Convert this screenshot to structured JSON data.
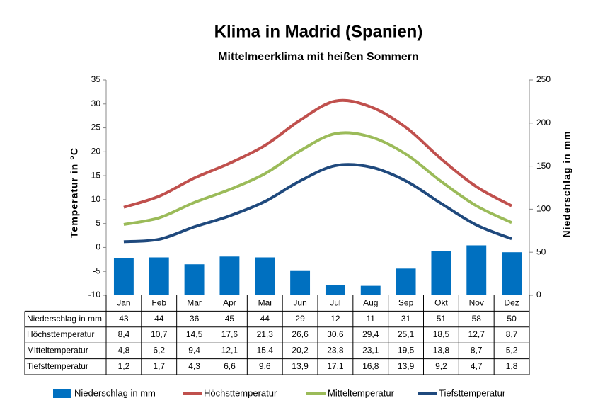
{
  "chart_data": {
    "type": "combo",
    "title": "Klima in Madrid (Spanien)",
    "subtitle": "Mittelmeerklima mit heißen Sommern",
    "y_label": "Temperatur in °C",
    "y2_label": "Niederschlag in mm",
    "categories": [
      "Jan",
      "Feb",
      "Mar",
      "Apr",
      "Mai",
      "Jun",
      "Jul",
      "Aug",
      "Sep",
      "Okt",
      "Nov",
      "Dez"
    ],
    "ylim": [
      -10,
      35
    ],
    "yticks": [
      -10,
      -5,
      0,
      5,
      10,
      15,
      20,
      25,
      30,
      35
    ],
    "y2lim": [
      0,
      250
    ],
    "y2ticks": [
      0,
      50,
      100,
      150,
      200,
      250
    ],
    "grid": false,
    "legend": "bottom",
    "series": [
      {
        "name": "Niederschlag in mm",
        "type": "bar",
        "axis": "y2",
        "color": "#0070c0",
        "values": [
          43,
          44,
          36,
          45,
          44,
          29,
          12,
          11,
          31,
          51,
          58,
          50
        ]
      },
      {
        "name": "Höchsttemperatur",
        "type": "line",
        "color": "#c0504d",
        "values": [
          8.4,
          10.7,
          14.5,
          17.6,
          21.3,
          26.6,
          30.6,
          29.4,
          25.1,
          18.5,
          12.7,
          8.7
        ],
        "value_labels": [
          "8,4",
          "10,7",
          "14,5",
          "17,6",
          "21,3",
          "26,6",
          "30,6",
          "29,4",
          "25,1",
          "18,5",
          "12,7",
          "8,7"
        ]
      },
      {
        "name": "Mitteltemperatur",
        "type": "line",
        "color": "#9bbb59",
        "values": [
          4.8,
          6.2,
          9.4,
          12.1,
          15.4,
          20.2,
          23.8,
          23.1,
          19.5,
          13.8,
          8.7,
          5.2
        ],
        "value_labels": [
          "4,8",
          "6,2",
          "9,4",
          "12,1",
          "15,4",
          "20,2",
          "23,8",
          "23,1",
          "19,5",
          "13,8",
          "8,7",
          "5,2"
        ]
      },
      {
        "name": "Tiefsttemperatur",
        "type": "line",
        "color": "#1f497d",
        "values": [
          1.2,
          1.7,
          4.3,
          6.6,
          9.6,
          13.9,
          17.1,
          16.8,
          13.9,
          9.2,
          4.7,
          1.8
        ],
        "value_labels": [
          "1,2",
          "1,7",
          "4,3",
          "6,6",
          "9,6",
          "13,9",
          "17,1",
          "16,8",
          "13,9",
          "9,2",
          "4,7",
          "1,8"
        ]
      }
    ]
  }
}
